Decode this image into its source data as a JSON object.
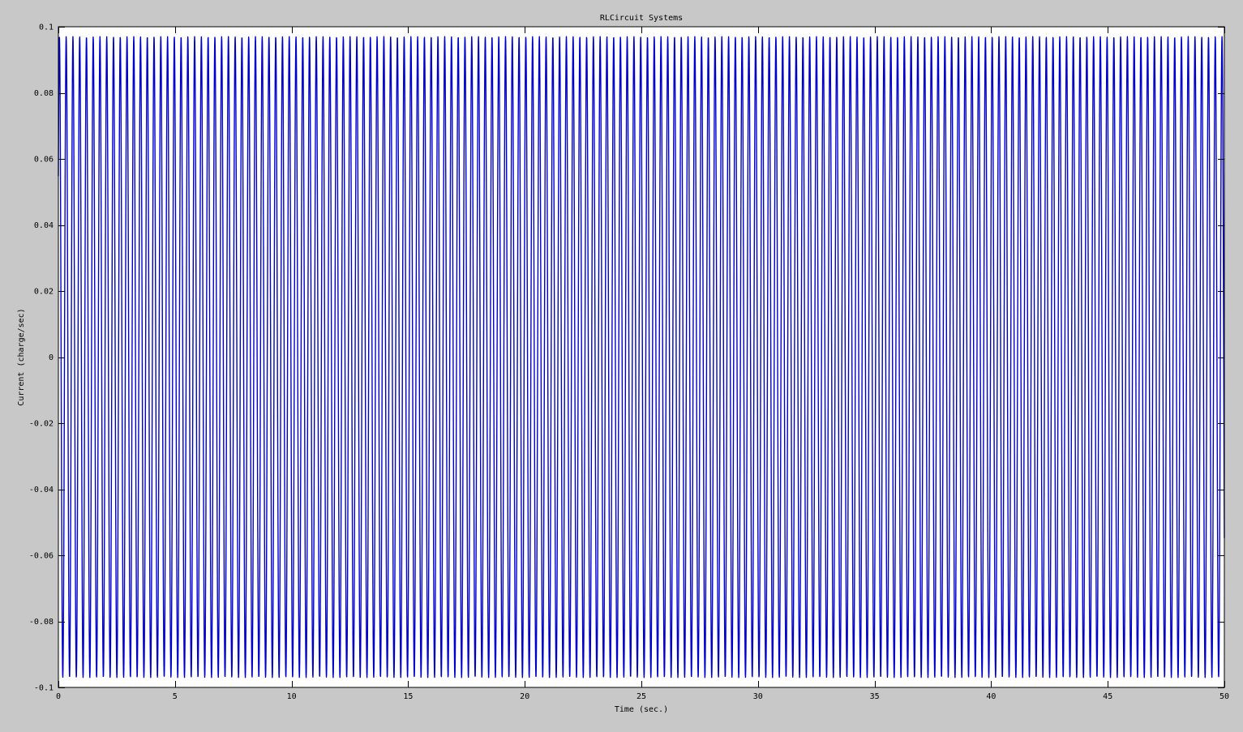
{
  "chart_data": {
    "type": "line",
    "title": "RLCircuit Systems",
    "xlabel": "Time (sec.)",
    "ylabel": "Current (charge/sec)",
    "xlim": [
      0,
      50
    ],
    "ylim": [
      -0.1,
      0.1
    ],
    "xticks": [
      0,
      5,
      10,
      15,
      20,
      25,
      30,
      35,
      40,
      45,
      50
    ],
    "xtick_labels": [
      "0",
      "5",
      "10",
      "15",
      "20",
      "25",
      "30",
      "35",
      "40",
      "45",
      "50"
    ],
    "yticks": [
      -0.1,
      -0.08,
      -0.06,
      -0.04,
      -0.02,
      0,
      0.02,
      0.04,
      0.06,
      0.08,
      0.1
    ],
    "ytick_labels": [
      "-0.1",
      "-0.08",
      "-0.06",
      "-0.04",
      "-0.02",
      "0",
      "0.02",
      "0.04",
      "0.06",
      "0.08",
      "0.1"
    ],
    "grid": false,
    "legend": false,
    "series": [
      {
        "color": "#0000cc",
        "function": "sine",
        "amplitude": 0.097,
        "frequency_hz": 3.45,
        "phase_rad": 0.6,
        "x_start": 0,
        "x_end": 50
      }
    ]
  },
  "colors": {
    "figure_background": "#c8c8c8",
    "axes_background": "#ffffff",
    "axes_border": "#000000",
    "series_line": "#0000cc"
  }
}
